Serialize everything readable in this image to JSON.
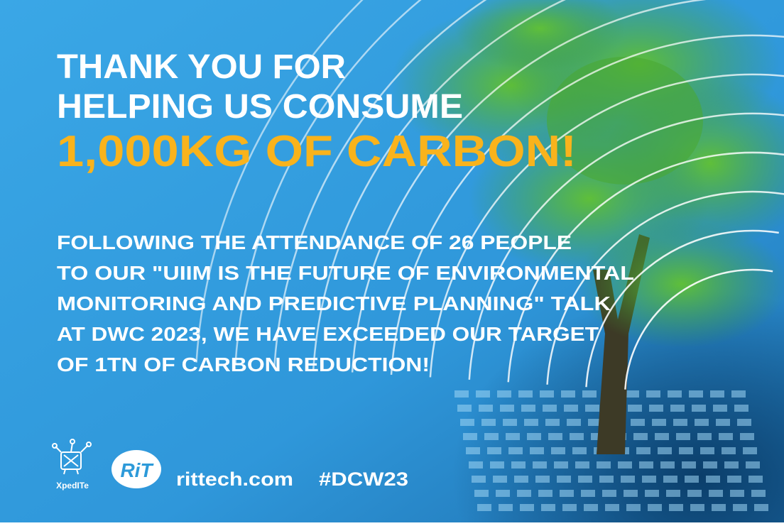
{
  "headline": {
    "lines": [
      "THANK YOU FOR",
      "HELPING US CONSUME"
    ],
    "highlight": "1,000KG OF CARBON!"
  },
  "body": {
    "lines": [
      "FOLLOWING THE ATTENDANCE OF 26 PEOPLE",
      "TO OUR \"UIIM IS THE FUTURE OF ENVIRONMENTAL",
      "MONITORING AND PREDICTIVE PLANNING\" TALK",
      "AT DWC 2023, WE HAVE EXCEEDED OUR TARGET",
      "OF 1TN OF CARBON REDUCTION!"
    ]
  },
  "footer": {
    "logos": [
      "XpedITe",
      "RiT"
    ],
    "website": "rittech.com",
    "hashtag": "#DCW23"
  }
}
